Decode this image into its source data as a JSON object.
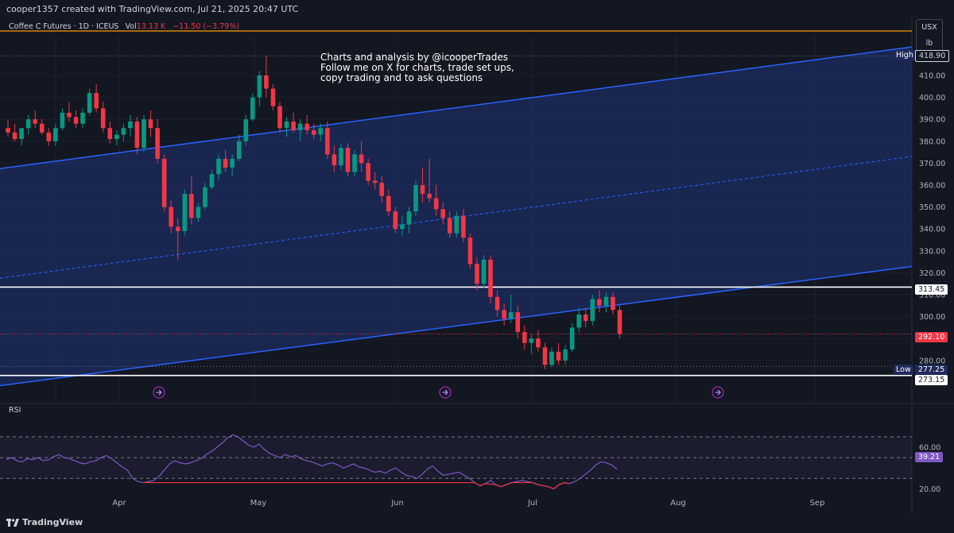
{
  "header": {
    "text": "cooper1357 created with TradingView.com, Jul 21, 2025 20:47 UTC"
  },
  "symbol": {
    "name": "Coffee C Futures · 1D · ICEUS",
    "vol_label": "Vol",
    "vol_value": "13.13 K",
    "change": "−11.50 (−3.79%)"
  },
  "units": {
    "line1": "USX",
    "line2": "lb"
  },
  "annotation": {
    "line1": "Charts and analysis by @icooperTrades",
    "line2": "Follow me on X for charts, trade set ups,",
    "line3": "copy trading and to ask questions"
  },
  "price_axis": {
    "ticks": [
      "410.00",
      "400.00",
      "390.00",
      "380.00",
      "370.00",
      "360.00",
      "350.00",
      "340.00",
      "330.00",
      "320.00",
      "310.00",
      "300.00",
      "290.00",
      "280.00"
    ],
    "high_tag": "High",
    "high_value": "418.90",
    "level_upper": "313.45",
    "last_price": "292.10",
    "low_tag": "Low",
    "low_value": "277.25",
    "level_lower": "273.15"
  },
  "time_axis": {
    "labels": [
      "Apr",
      "May",
      "Jun",
      "Jul",
      "Aug",
      "Sep"
    ]
  },
  "rsi": {
    "label": "RSI",
    "value": "39.21",
    "ticks": [
      "60.00",
      "20.00"
    ],
    "values": [
      48,
      50,
      47,
      46,
      49,
      48,
      50,
      47,
      48,
      51,
      53,
      50,
      49,
      47,
      45,
      44,
      46,
      47,
      50,
      52,
      49,
      45,
      41,
      38,
      30,
      27,
      26,
      27,
      28,
      32,
      38,
      44,
      47,
      45,
      44,
      45,
      47,
      49,
      53,
      56,
      60,
      64,
      69,
      72,
      70,
      66,
      62,
      60,
      63,
      58,
      54,
      52,
      50,
      53,
      51,
      52,
      49,
      47,
      46,
      44,
      42,
      44,
      45,
      43,
      40,
      42,
      44,
      41,
      40,
      38,
      36,
      37,
      35,
      38,
      40,
      36,
      33,
      32,
      30,
      34,
      39,
      42,
      37,
      33,
      34,
      35,
      36,
      33,
      30,
      26,
      23,
      25,
      28,
      24,
      22,
      24,
      26,
      27,
      28,
      27,
      26,
      24,
      23,
      22,
      20,
      24,
      26,
      25,
      27,
      30,
      34,
      38,
      43,
      46,
      45,
      43,
      39
    ]
  },
  "chart_data": {
    "type": "candlestick",
    "title": "Coffee C Futures · 1D · ICEUS",
    "ylabel": "USX/lb",
    "ylim": [
      265,
      423
    ],
    "x_labels": [
      "Apr",
      "May",
      "Jun",
      "Jul",
      "Aug",
      "Sep"
    ],
    "horizontal_levels": [
      313.45,
      273.15,
      418.9,
      277.25
    ],
    "last_price": 292.1,
    "channel": {
      "upper": [
        [
          0,
          368
        ],
        [
          116,
          416
        ]
      ],
      "lower": [
        [
          0,
          269
        ],
        [
          116,
          316
        ]
      ],
      "middle": [
        [
          0,
          318
        ],
        [
          116,
          366
        ]
      ]
    },
    "candles": [
      [
        386,
        390,
        382,
        384
      ],
      [
        384,
        388,
        380,
        381
      ],
      [
        381,
        385,
        378,
        386
      ],
      [
        386,
        392,
        383,
        390
      ],
      [
        390,
        394,
        386,
        388
      ],
      [
        388,
        390,
        383,
        384
      ],
      [
        384,
        386,
        378,
        380
      ],
      [
        380,
        388,
        378,
        386
      ],
      [
        386,
        395,
        385,
        393
      ],
      [
        393,
        398,
        389,
        391
      ],
      [
        391,
        394,
        386,
        388
      ],
      [
        388,
        395,
        386,
        393
      ],
      [
        393,
        404,
        392,
        402
      ],
      [
        402,
        406,
        393,
        395
      ],
      [
        395,
        398,
        384,
        386
      ],
      [
        386,
        389,
        379,
        381
      ],
      [
        381,
        385,
        378,
        383
      ],
      [
        383,
        388,
        380,
        386
      ],
      [
        386,
        392,
        382,
        389
      ],
      [
        389,
        391,
        374,
        377
      ],
      [
        377,
        392,
        375,
        390
      ],
      [
        390,
        394,
        382,
        386
      ],
      [
        386,
        390,
        370,
        372
      ],
      [
        372,
        374,
        348,
        350
      ],
      [
        350,
        353,
        338,
        341
      ],
      [
        341,
        345,
        326,
        339
      ],
      [
        339,
        358,
        337,
        356
      ],
      [
        356,
        364,
        342,
        345
      ],
      [
        345,
        352,
        343,
        350
      ],
      [
        350,
        361,
        349,
        359
      ],
      [
        359,
        367,
        358,
        365
      ],
      [
        365,
        374,
        362,
        372
      ],
      [
        372,
        376,
        366,
        368
      ],
      [
        368,
        374,
        364,
        372
      ],
      [
        372,
        383,
        371,
        380
      ],
      [
        380,
        392,
        378,
        390
      ],
      [
        390,
        402,
        389,
        400
      ],
      [
        400,
        412,
        396,
        410
      ],
      [
        410,
        418.9,
        400,
        404
      ],
      [
        404,
        406,
        394,
        396
      ],
      [
        396,
        398,
        384,
        386
      ],
      [
        386,
        391,
        382,
        389
      ],
      [
        389,
        393,
        384,
        385
      ],
      [
        385,
        390,
        380,
        388
      ],
      [
        388,
        392,
        383,
        385
      ],
      [
        385,
        388,
        381,
        383
      ],
      [
        383,
        388,
        380,
        386
      ],
      [
        386,
        389,
        372,
        374
      ],
      [
        374,
        378,
        366,
        369
      ],
      [
        369,
        379,
        367,
        377
      ],
      [
        377,
        379,
        364,
        366
      ],
      [
        366,
        376,
        364,
        374
      ],
      [
        374,
        380,
        366,
        370
      ],
      [
        370,
        372,
        360,
        362
      ],
      [
        362,
        366,
        358,
        361
      ],
      [
        361,
        364,
        352,
        355
      ],
      [
        355,
        358,
        346,
        348
      ],
      [
        348,
        350,
        338,
        340
      ],
      [
        340,
        346,
        337,
        342
      ],
      [
        342,
        350,
        338,
        348
      ],
      [
        348,
        362,
        346,
        360
      ],
      [
        360,
        368,
        352,
        356
      ],
      [
        356,
        372,
        352,
        354
      ],
      [
        354,
        360,
        346,
        349
      ],
      [
        349,
        352,
        342,
        345
      ],
      [
        345,
        348,
        336,
        338
      ],
      [
        338,
        348,
        336,
        346
      ],
      [
        346,
        349,
        334,
        336
      ],
      [
        336,
        338,
        322,
        324
      ],
      [
        324,
        327,
        312,
        315
      ],
      [
        315,
        328,
        313,
        326
      ],
      [
        326,
        328,
        306,
        309
      ],
      [
        309,
        312,
        300,
        303
      ],
      [
        303,
        306,
        296,
        299
      ],
      [
        299,
        310,
        297,
        302
      ],
      [
        302,
        305,
        290,
        293
      ],
      [
        293,
        296,
        285,
        288
      ],
      [
        288,
        292,
        283,
        290
      ],
      [
        290,
        294,
        284,
        286
      ],
      [
        286,
        288,
        276,
        278
      ],
      [
        278,
        286,
        277,
        284
      ],
      [
        284,
        288,
        278,
        280
      ],
      [
        280,
        287,
        278,
        285
      ],
      [
        285,
        297,
        284,
        295
      ],
      [
        295,
        304,
        293,
        301
      ],
      [
        301,
        304,
        295,
        298
      ],
      [
        298,
        310,
        296,
        308
      ],
      [
        308,
        312,
        302,
        305
      ],
      [
        305,
        311,
        302,
        309
      ],
      [
        309,
        311,
        301,
        303
      ],
      [
        303,
        305,
        290,
        292
      ]
    ]
  },
  "colors": {
    "background": "#131722",
    "up": "#089981",
    "down": "#f23645",
    "channel": "#2962ff",
    "rsi": "#7e57c2",
    "orange_line": "#ff9800"
  },
  "events": {
    "icon": "arrow-right-circle-icon"
  },
  "footer": {
    "logo": "TradingView"
  }
}
